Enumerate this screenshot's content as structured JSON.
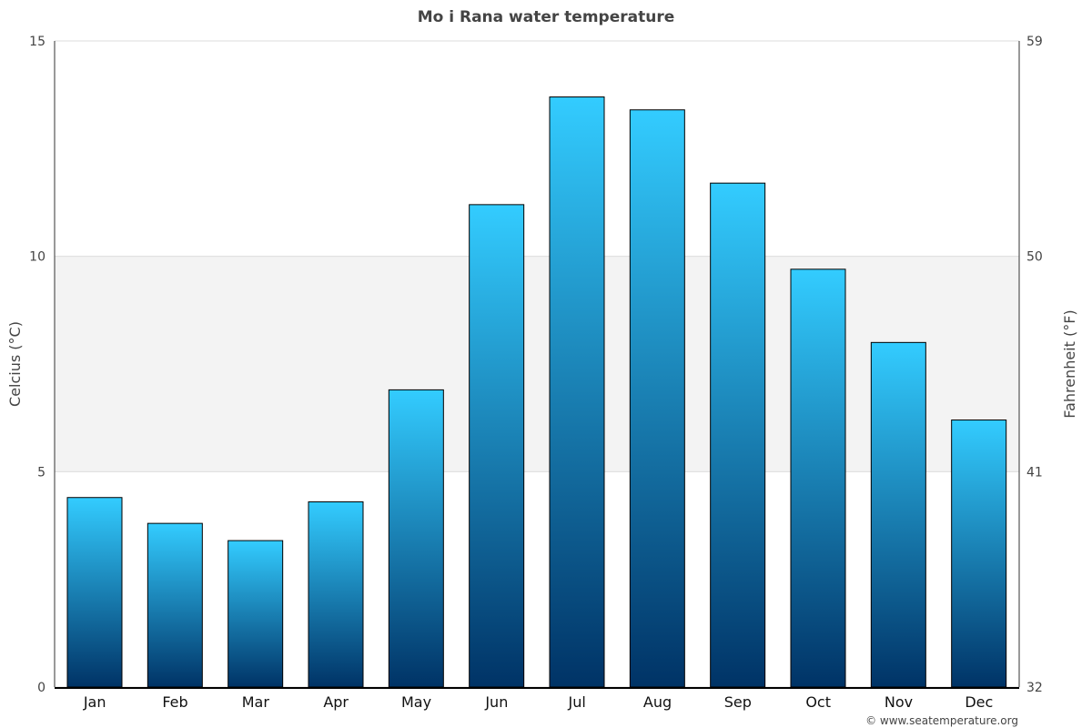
{
  "chart_data": {
    "type": "bar",
    "title": "Mo i Rana water temperature",
    "ylabel": "Celcius (°C)",
    "y2label": "Fahrenheit (°F)",
    "ylim": [
      0,
      15
    ],
    "y2lim": [
      32,
      59
    ],
    "yticks": [
      "0",
      "5",
      "10",
      "15"
    ],
    "y2ticks": [
      "32",
      "41",
      "50",
      "59"
    ],
    "categories": [
      "Jan",
      "Feb",
      "Mar",
      "Apr",
      "May",
      "Jun",
      "Jul",
      "Aug",
      "Sep",
      "Oct",
      "Nov",
      "Dec"
    ],
    "values": [
      4.4,
      3.8,
      3.4,
      4.3,
      6.9,
      11.2,
      13.7,
      13.4,
      11.7,
      9.7,
      8.0,
      6.2
    ],
    "shaded_band": [
      5,
      10
    ],
    "colors": {
      "bar_top": "#33ccff",
      "bar_bottom": "#003366",
      "band": "#f3f3f3"
    },
    "credit": "© www.seatemperature.org"
  }
}
